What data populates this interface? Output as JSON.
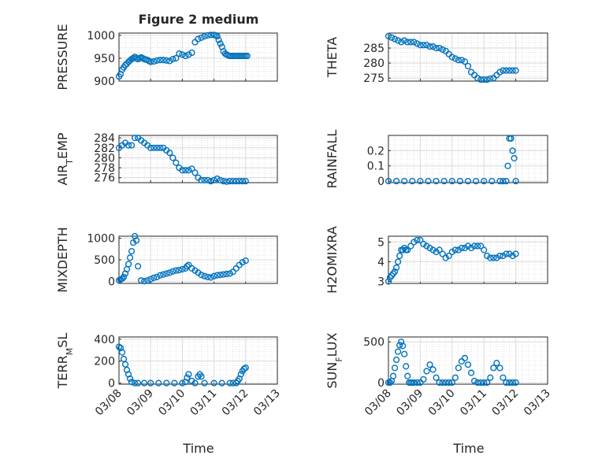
{
  "figure_title": "Figure 2 medium",
  "x_label": "Time",
  "x_ticks": [
    "03/08",
    "03/09",
    "03/10",
    "03/11",
    "03/12",
    "03/13"
  ],
  "marker_color": "#0072BD",
  "chart_data": [
    {
      "type": "scatter",
      "id": "pressure",
      "ylabel_parts": [
        {
          "t": "PRESSURE"
        }
      ],
      "ylim": [
        900,
        1005
      ],
      "yticks": [
        900,
        950,
        1000
      ],
      "x": [
        0.0,
        0.05,
        0.1,
        0.15,
        0.2,
        0.25,
        0.3,
        0.35,
        0.4,
        0.45,
        0.5,
        0.55,
        0.6,
        0.65,
        0.7,
        0.75,
        0.8,
        0.85,
        0.9,
        0.95,
        1.0,
        1.1,
        1.2,
        1.3,
        1.4,
        1.5,
        1.6,
        1.7,
        1.8,
        1.9,
        2.0,
        2.1,
        2.2,
        2.3,
        2.4,
        2.5,
        2.6,
        2.7,
        2.8,
        2.9,
        3.0,
        3.05,
        3.1,
        3.15,
        3.2,
        3.25,
        3.3,
        3.35,
        3.4,
        3.45,
        3.5,
        3.55,
        3.6,
        3.65,
        3.7,
        3.75,
        3.8,
        3.85,
        3.9,
        3.95,
        4.0,
        4.05
      ],
      "y": [
        910,
        915,
        925,
        930,
        935,
        938,
        942,
        945,
        948,
        950,
        953,
        950,
        948,
        950,
        952,
        950,
        948,
        947,
        946,
        944,
        942,
        943,
        945,
        946,
        946,
        945,
        944,
        948,
        950,
        960,
        958,
        955,
        958,
        962,
        985,
        992,
        995,
        998,
        1000,
        1001,
        1001,
        1000,
        998,
        990,
        982,
        975,
        965,
        960,
        958,
        956,
        955,
        955,
        955,
        955,
        955,
        955,
        955,
        955,
        955,
        955,
        955,
        955
      ]
    },
    {
      "type": "scatter",
      "id": "theta",
      "ylabel_parts": [
        {
          "t": "THETA"
        }
      ],
      "ylim": [
        274,
        290
      ],
      "yticks": [
        275,
        280,
        285
      ],
      "x": [
        0.0,
        0.1,
        0.2,
        0.3,
        0.4,
        0.5,
        0.6,
        0.7,
        0.8,
        0.9,
        1.0,
        1.1,
        1.2,
        1.3,
        1.4,
        1.5,
        1.6,
        1.7,
        1.8,
        1.9,
        2.0,
        2.1,
        2.2,
        2.3,
        2.4,
        2.5,
        2.6,
        2.7,
        2.8,
        2.9,
        3.0,
        3.1,
        3.2,
        3.3,
        3.4,
        3.5,
        3.6,
        3.7,
        3.8,
        3.9,
        4.0
      ],
      "y": [
        289,
        288.5,
        288,
        287.5,
        287,
        287.5,
        287,
        287,
        287,
        286.5,
        286,
        286,
        286,
        285.5,
        285.5,
        285,
        285,
        284.5,
        284,
        283,
        282,
        281.5,
        281,
        281,
        280.5,
        279,
        277,
        276,
        275,
        274.5,
        274.5,
        274.5,
        274.8,
        275,
        276,
        277,
        277.5,
        277.5,
        277.5,
        277.5,
        277.5
      ]
    },
    {
      "type": "scatter",
      "id": "air_temp",
      "ylabel_parts": [
        {
          "t": "AIR"
        },
        {
          "t": "T",
          "sub": true
        },
        {
          "t": "EMP"
        }
      ],
      "ylim": [
        275,
        284.5
      ],
      "yticks": [
        276,
        278,
        280,
        282,
        284
      ],
      "x": [
        0.0,
        0.1,
        0.2,
        0.3,
        0.4,
        0.5,
        0.6,
        0.7,
        0.8,
        0.9,
        1.0,
        1.1,
        1.2,
        1.3,
        1.4,
        1.5,
        1.6,
        1.7,
        1.8,
        1.9,
        2.0,
        2.1,
        2.2,
        2.3,
        2.4,
        2.5,
        2.6,
        2.7,
        2.8,
        2.9,
        3.0,
        3.1,
        3.2,
        3.3,
        3.4,
        3.5,
        3.6,
        3.7,
        3.8,
        3.9,
        4.0
      ],
      "y": [
        282,
        282.5,
        283,
        282.5,
        282.5,
        284,
        284,
        283.5,
        283,
        282.5,
        282,
        282,
        282,
        282,
        282,
        281.5,
        281,
        280,
        279,
        278,
        277.5,
        277.5,
        277.5,
        277.8,
        277,
        276,
        275.5,
        275.5,
        275.5,
        275.3,
        275.5,
        275.8,
        275.5,
        275.3,
        275.2,
        275.3,
        275.3,
        275.3,
        275.3,
        275.3,
        275.3
      ]
    },
    {
      "type": "scatter",
      "id": "rainfall",
      "ylabel_parts": [
        {
          "t": "RAINFALL"
        }
      ],
      "ylim": [
        -0.01,
        0.3
      ],
      "yticks": [
        0,
        0.1,
        0.2
      ],
      "x": [
        0.0,
        0.25,
        0.5,
        0.75,
        1.0,
        1.25,
        1.5,
        1.75,
        2.0,
        2.25,
        2.5,
        2.75,
        3.0,
        3.25,
        3.5,
        3.6,
        3.7,
        3.75,
        3.8,
        3.85,
        3.9,
        3.95,
        4.0
      ],
      "y": [
        0,
        0,
        0,
        0,
        0,
        0,
        0,
        0,
        0,
        0,
        0,
        0,
        0,
        0,
        0,
        0,
        0,
        0.1,
        0.28,
        0.28,
        0.2,
        0.15,
        0
      ]
    },
    {
      "type": "scatter",
      "id": "mixdepth",
      "ylabel_parts": [
        {
          "t": "MIXDEPTH"
        }
      ],
      "ylim": [
        -50,
        1050
      ],
      "yticks": [
        0,
        500,
        1000
      ],
      "x": [
        0.0,
        0.05,
        0.1,
        0.15,
        0.2,
        0.25,
        0.3,
        0.35,
        0.4,
        0.45,
        0.5,
        0.55,
        0.6,
        0.7,
        0.8,
        0.9,
        1.0,
        1.1,
        1.2,
        1.3,
        1.4,
        1.5,
        1.6,
        1.7,
        1.8,
        1.9,
        2.0,
        2.1,
        2.15,
        2.2,
        2.3,
        2.4,
        2.5,
        2.6,
        2.7,
        2.8,
        2.9,
        3.0,
        3.1,
        3.2,
        3.3,
        3.4,
        3.5,
        3.6,
        3.7,
        3.8,
        3.9,
        4.0
      ],
      "y": [
        20,
        40,
        60,
        100,
        180,
        280,
        400,
        550,
        700,
        900,
        1050,
        950,
        350,
        20,
        0,
        20,
        50,
        80,
        100,
        140,
        160,
        180,
        200,
        230,
        250,
        260,
        280,
        300,
        350,
        380,
        300,
        250,
        200,
        150,
        120,
        100,
        90,
        120,
        140,
        150,
        160,
        170,
        180,
        220,
        300,
        380,
        440,
        480
      ]
    },
    {
      "type": "scatter",
      "id": "h2omixra",
      "ylabel_parts": [
        {
          "t": "H2OMIXRA"
        }
      ],
      "ylim": [
        2.9,
        5.3
      ],
      "yticks": [
        3,
        4,
        5
      ],
      "x": [
        0.0,
        0.05,
        0.1,
        0.15,
        0.2,
        0.25,
        0.3,
        0.35,
        0.4,
        0.45,
        0.5,
        0.55,
        0.6,
        0.7,
        0.8,
        0.9,
        1.0,
        1.1,
        1.2,
        1.3,
        1.4,
        1.5,
        1.6,
        1.7,
        1.8,
        1.9,
        2.0,
        2.1,
        2.2,
        2.3,
        2.4,
        2.5,
        2.6,
        2.7,
        2.8,
        2.9,
        3.0,
        3.1,
        3.2,
        3.3,
        3.4,
        3.5,
        3.6,
        3.7,
        3.8,
        3.9,
        4.0
      ],
      "y": [
        3.0,
        3.2,
        3.3,
        3.4,
        3.5,
        3.7,
        4.0,
        4.3,
        4.6,
        4.6,
        4.7,
        4.6,
        4.6,
        4.8,
        5.0,
        5.1,
        5.1,
        4.9,
        4.8,
        4.7,
        4.6,
        4.5,
        4.6,
        4.4,
        4.2,
        4.3,
        4.5,
        4.6,
        4.6,
        4.7,
        4.7,
        4.8,
        4.7,
        4.8,
        4.8,
        4.8,
        4.6,
        4.3,
        4.2,
        4.2,
        4.2,
        4.3,
        4.3,
        4.4,
        4.4,
        4.3,
        4.4
      ]
    },
    {
      "type": "scatter",
      "id": "terr_msl",
      "ylabel_parts": [
        {
          "t": "TERR"
        },
        {
          "t": "M",
          "sub": true
        },
        {
          "t": "SL"
        }
      ],
      "ylim": [
        -10,
        420
      ],
      "yticks": [
        0,
        200,
        400
      ],
      "x": [
        0.0,
        0.05,
        0.1,
        0.15,
        0.2,
        0.25,
        0.3,
        0.35,
        0.4,
        0.5,
        0.6,
        0.8,
        1.0,
        1.25,
        1.5,
        1.75,
        2.0,
        2.1,
        2.15,
        2.2,
        2.3,
        2.4,
        2.5,
        2.55,
        2.6,
        2.7,
        3.0,
        3.25,
        3.5,
        3.6,
        3.7,
        3.75,
        3.8,
        3.85,
        3.9,
        3.95,
        4.0
      ],
      "y": [
        330,
        320,
        280,
        220,
        170,
        120,
        80,
        40,
        10,
        0,
        0,
        0,
        0,
        0,
        0,
        0,
        0,
        10,
        50,
        80,
        20,
        0,
        60,
        80,
        60,
        0,
        0,
        0,
        0,
        0,
        0,
        20,
        40,
        80,
        110,
        130,
        140
      ]
    },
    {
      "type": "scatter",
      "id": "sun_flux",
      "ylabel_parts": [
        {
          "t": "SUN"
        },
        {
          "t": "F",
          "sub": true
        },
        {
          "t": "LUX"
        }
      ],
      "ylim": [
        -20,
        560
      ],
      "yticks": [
        0,
        500
      ],
      "x": [
        0.0,
        0.05,
        0.1,
        0.15,
        0.2,
        0.25,
        0.3,
        0.35,
        0.4,
        0.45,
        0.5,
        0.55,
        0.6,
        0.65,
        0.7,
        0.75,
        0.8,
        0.9,
        1.0,
        1.1,
        1.2,
        1.3,
        1.4,
        1.5,
        1.6,
        1.7,
        1.8,
        1.9,
        2.0,
        2.1,
        2.2,
        2.3,
        2.4,
        2.5,
        2.6,
        2.7,
        2.8,
        2.9,
        3.0,
        3.1,
        3.2,
        3.3,
        3.4,
        3.5,
        3.6,
        3.7,
        3.8,
        3.9,
        4.0
      ],
      "y": [
        0,
        0,
        20,
        80,
        180,
        280,
        380,
        460,
        500,
        450,
        350,
        200,
        80,
        0,
        0,
        0,
        0,
        0,
        0,
        40,
        140,
        220,
        160,
        60,
        0,
        0,
        0,
        0,
        0,
        60,
        180,
        260,
        300,
        220,
        120,
        20,
        0,
        0,
        0,
        0,
        60,
        180,
        240,
        180,
        60,
        0,
        0,
        0,
        0
      ]
    }
  ]
}
